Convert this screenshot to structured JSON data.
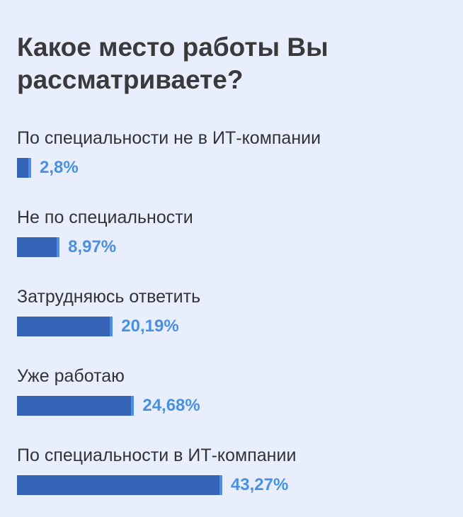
{
  "chart_data": {
    "type": "bar",
    "orientation": "horizontal",
    "title": "Какое место работы Вы рассматриваете?",
    "categories": [
      "По специальности не в ИТ-компании",
      "Не по специальности",
      "Затрудняюсь ответить",
      "Уже работаю",
      "По специальности в ИТ-компании"
    ],
    "values": [
      2.8,
      8.97,
      20.19,
      24.68,
      43.27
    ],
    "value_labels": [
      "2,8%",
      "8,97%",
      "20,19%",
      "24,68%",
      "43,27%"
    ],
    "unit": "%",
    "grid": false,
    "legend": "none",
    "colors": {
      "bar": "#3563b6",
      "bar_tip": "#4d8fe6",
      "value_text": "#4a90e2",
      "background": "#e9eefc"
    }
  }
}
